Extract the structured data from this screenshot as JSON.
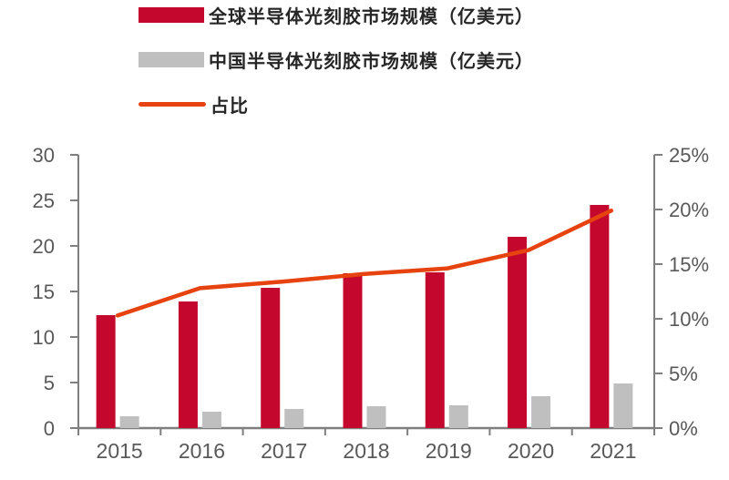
{
  "legend": {
    "items": [
      {
        "label": "全球半导体光刻胶市场规模（亿美元）",
        "color": "#c4082d",
        "swatch": "bar"
      },
      {
        "label": "中国半导体光刻胶市场规模（亿美元）",
        "color": "#bfbfbf",
        "swatch": "bar"
      },
      {
        "label": "占比",
        "color": "#e64310",
        "swatch": "line"
      }
    ]
  },
  "chart_data": {
    "type": "bar+line combo",
    "categories": [
      "2015",
      "2016",
      "2017",
      "2018",
      "2019",
      "2020",
      "2021"
    ],
    "series": [
      {
        "name": "全球半导体光刻胶市场规模（亿美元）",
        "type": "bar",
        "axis": "left",
        "color": "#c4082d",
        "values": [
          12.4,
          13.9,
          15.4,
          17.0,
          17.1,
          21.0,
          24.5
        ]
      },
      {
        "name": "中国半导体光刻胶市场规模（亿美元）",
        "type": "bar",
        "axis": "left",
        "color": "#bfbfbf",
        "values": [
          1.3,
          1.8,
          2.1,
          2.4,
          2.5,
          3.5,
          4.9
        ]
      },
      {
        "name": "占比",
        "type": "line",
        "axis": "right",
        "color": "#e64310",
        "values": [
          10.3,
          12.8,
          13.4,
          14.1,
          14.6,
          16.3,
          19.9
        ]
      }
    ],
    "left_axis": {
      "min": 0,
      "max": 30,
      "step": 5,
      "tick_labels": [
        "0",
        "5",
        "10",
        "15",
        "20",
        "25",
        "30"
      ]
    },
    "right_axis": {
      "min": 0,
      "max": 25,
      "step": 5,
      "tick_labels": [
        "0%",
        "5%",
        "10%",
        "15%",
        "20%",
        "25%"
      ]
    },
    "grid": false,
    "legend_position": "top-left",
    "axis_color": "#7f7f7f",
    "tick_label_color": "#595959"
  }
}
